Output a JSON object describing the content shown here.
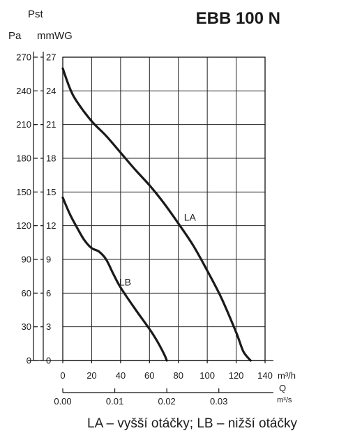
{
  "chart_data": {
    "type": "line",
    "title": "EBB 100 N",
    "y_quantity_label": "Pst",
    "y_axis_pa": {
      "unit": "Pa",
      "ticks": [
        0,
        30,
        60,
        90,
        120,
        150,
        180,
        210,
        240,
        270
      ],
      "range": [
        0,
        270
      ]
    },
    "y_axis_mmwg": {
      "unit": "mmWG",
      "ticks": [
        0,
        3,
        6,
        9,
        12,
        15,
        18,
        21,
        24,
        27
      ],
      "range": [
        0,
        27
      ]
    },
    "x_axis_m3h": {
      "unit": "m³/h",
      "ticks": [
        0,
        20,
        40,
        60,
        80,
        100,
        120,
        140
      ],
      "range": [
        0,
        140
      ]
    },
    "x_axis_m3s": {
      "unit": "m³/s",
      "ticks": [
        "0.00",
        "0.01",
        "0.02",
        "0.03"
      ],
      "tick_values": [
        0,
        0.01,
        0.02,
        0.03
      ]
    },
    "x_quantity_label": "Q",
    "grid": true,
    "series": [
      {
        "name": "LA",
        "x": [
          0,
          5,
          10,
          20,
          30,
          40,
          50,
          60,
          70,
          80,
          90,
          100,
          110,
          120,
          125,
          130
        ],
        "y": [
          26,
          24.2,
          23,
          21.3,
          20,
          18.5,
          17,
          15.6,
          14,
          12.2,
          10.3,
          8,
          5.5,
          2.5,
          0.8,
          0
        ]
      },
      {
        "name": "LB",
        "x": [
          0,
          5,
          10,
          15,
          20,
          25,
          30,
          35,
          40,
          50,
          60,
          65,
          70,
          72
        ],
        "y": [
          14.5,
          13,
          11.8,
          10.7,
          10,
          9.7,
          9,
          7.7,
          6.5,
          4.6,
          2.8,
          1.8,
          0.6,
          0
        ]
      }
    ]
  },
  "caption": "LA – vyšší otáčky; LB – nižší otáčky"
}
